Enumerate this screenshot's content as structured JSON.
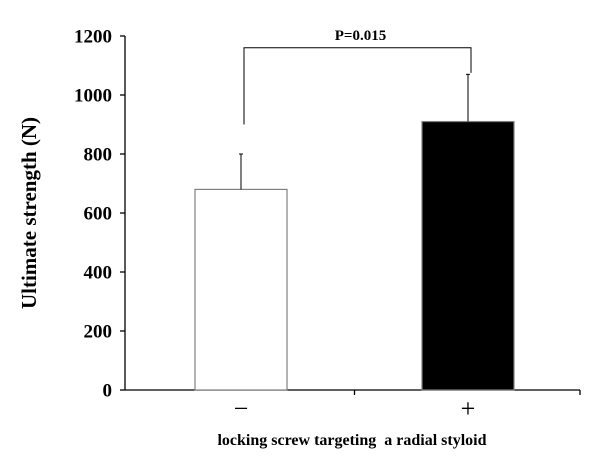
{
  "chart_data": {
    "type": "bar",
    "categories": [
      "−",
      "+"
    ],
    "values": [
      680,
      910
    ],
    "error_upper": [
      800,
      1070
    ],
    "bar_colors": [
      "#ffffff",
      "#000000"
    ],
    "bar_edge_color": "#808080",
    "ylabel": "Ultimate strength (N)",
    "xlabel": "locking screw targeting  a radial styloid",
    "ylim": [
      0,
      1200
    ],
    "yticks": [
      "0",
      "200",
      "400",
      "600",
      "800",
      "1000",
      "1200"
    ],
    "grid": false,
    "annotation": {
      "text": "P=0.015",
      "left_value": 900,
      "right_value": 1075,
      "bracket_top_value": 1160
    }
  }
}
